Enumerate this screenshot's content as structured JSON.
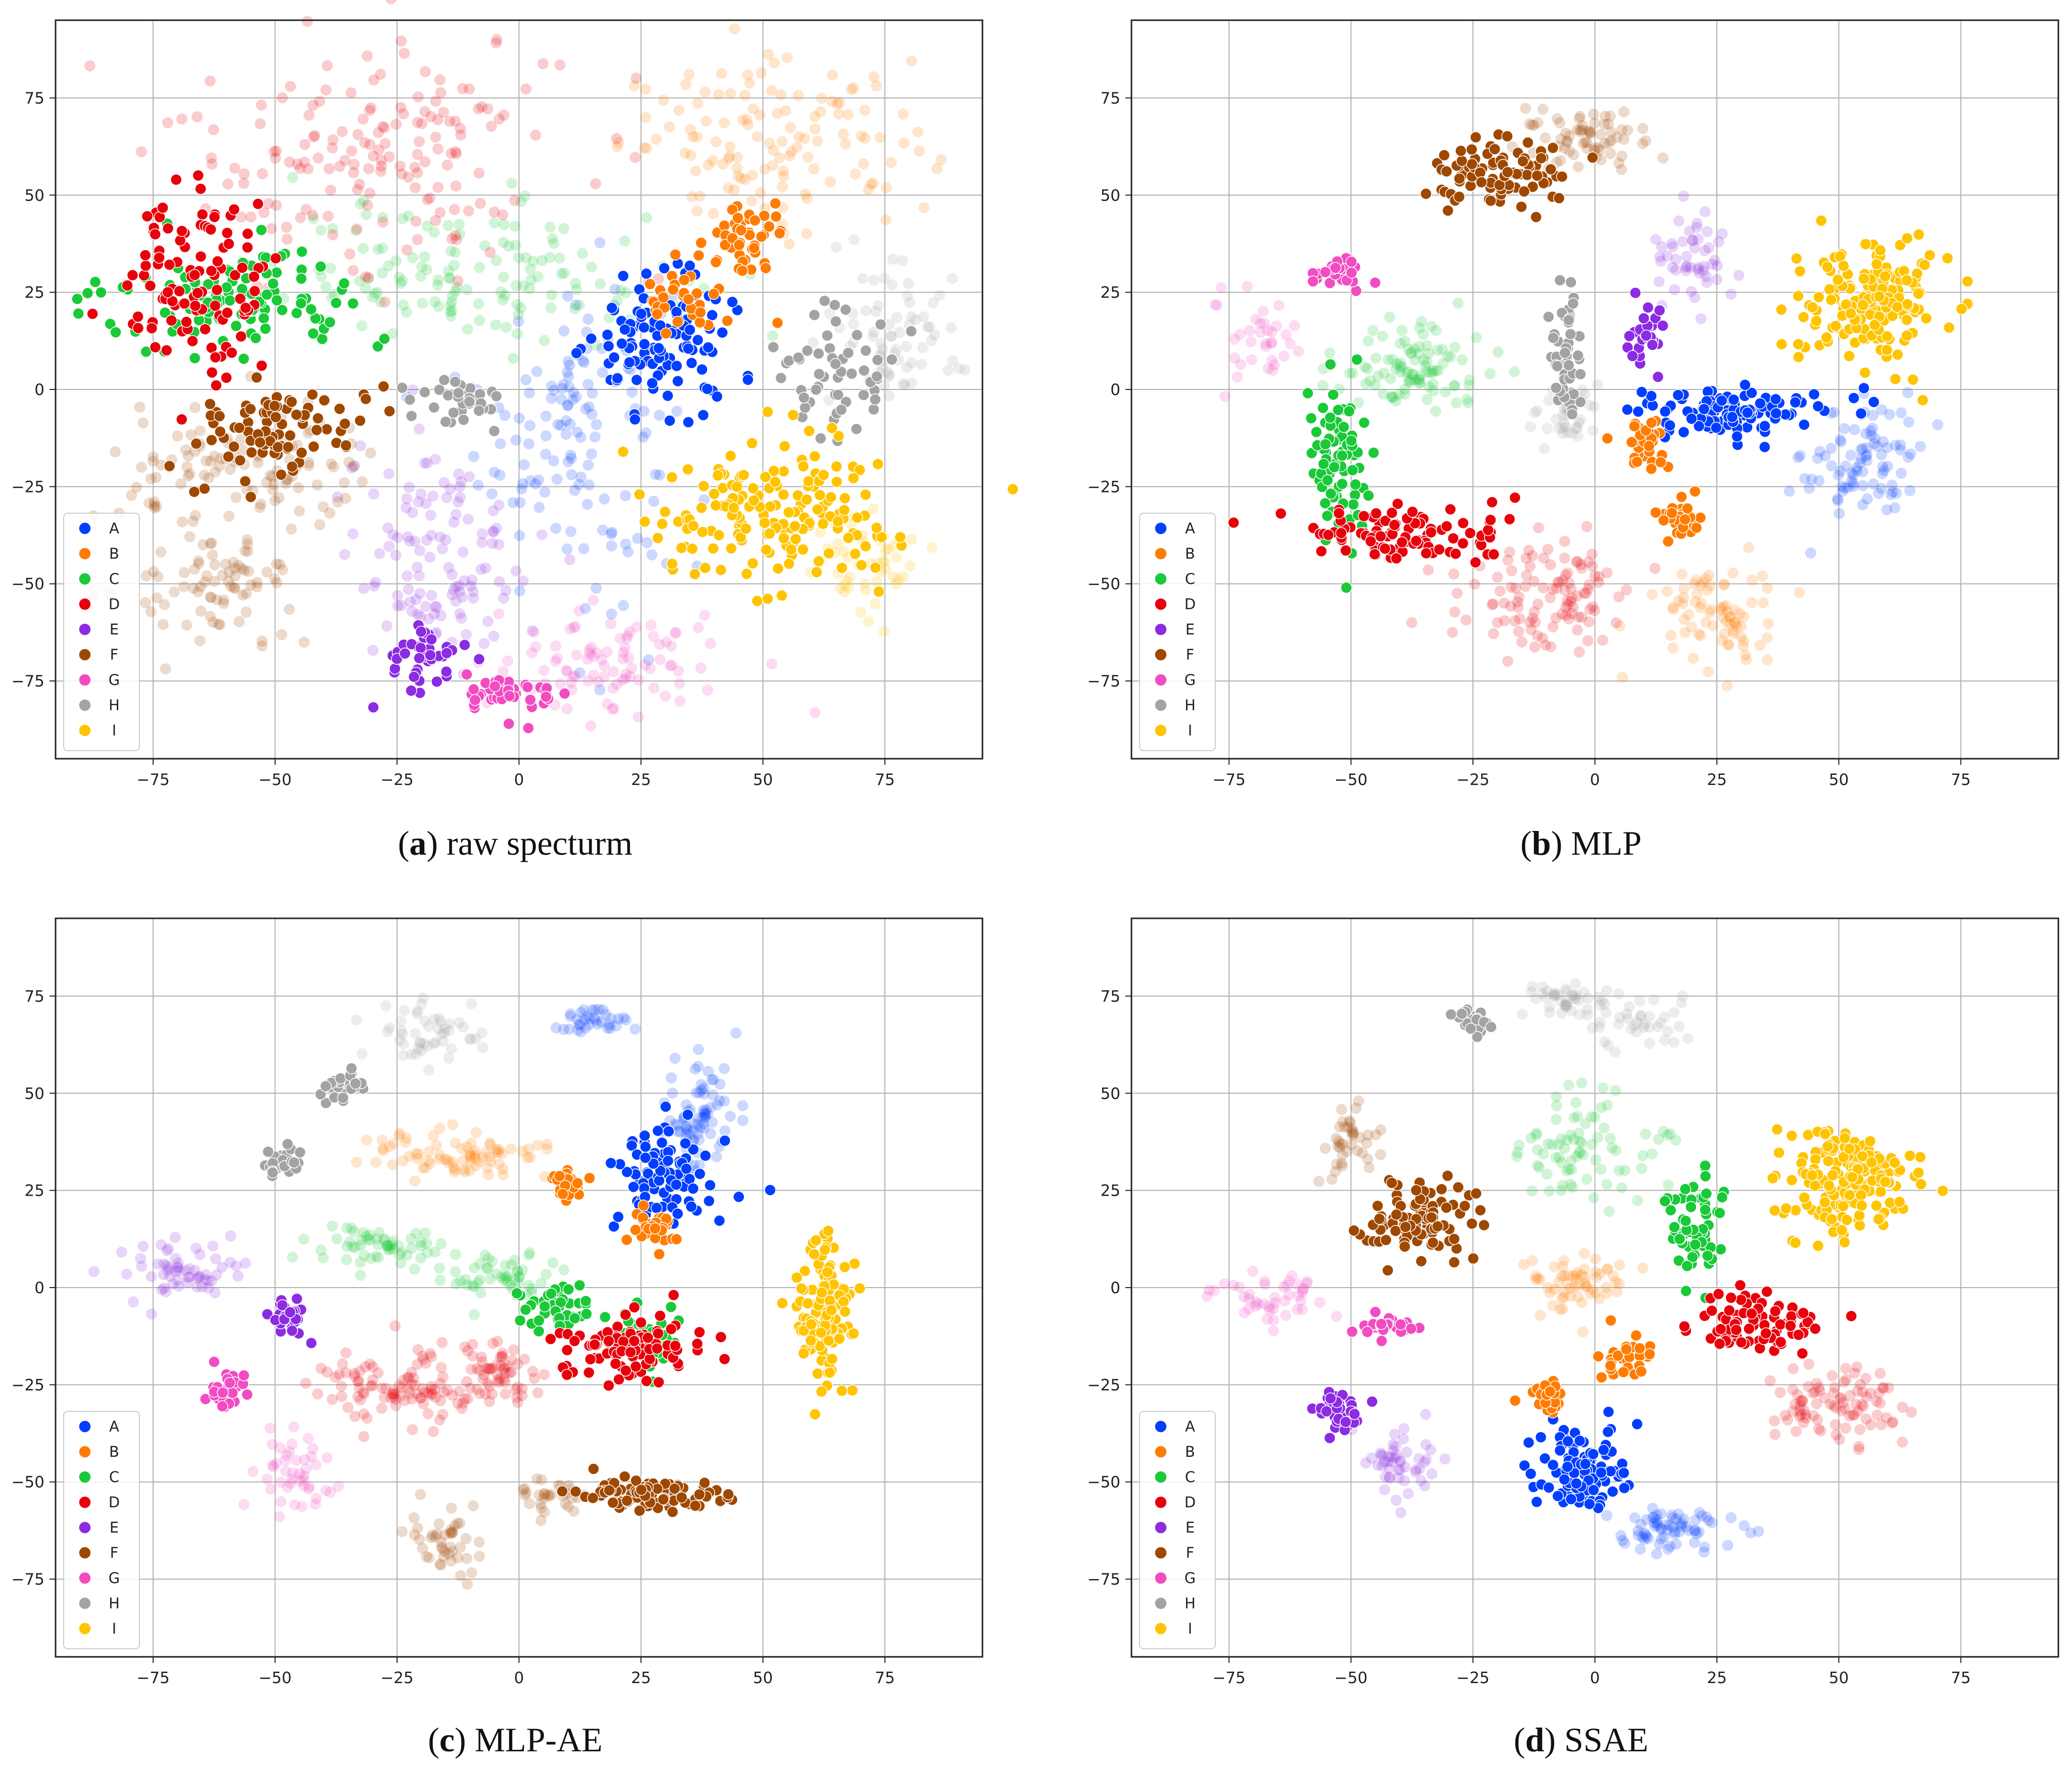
{
  "figure": {
    "captions": [
      {
        "letter": "a",
        "text": "raw specturm"
      },
      {
        "letter": "b",
        "text": "MLP"
      },
      {
        "letter": "c",
        "text": "MLP-AE"
      },
      {
        "letter": "d",
        "text": "SSAE"
      }
    ]
  },
  "chart_data": [
    {
      "type": "scatter",
      "title": "(a) raw specturm",
      "xlim": [
        -95,
        95
      ],
      "ylim": [
        -95,
        95
      ],
      "xticks": [
        -75,
        -50,
        -25,
        0,
        25,
        50,
        75
      ],
      "yticks": [
        -75,
        -50,
        -25,
        0,
        25,
        50,
        75
      ],
      "grid": true,
      "legend": "lower-left",
      "classes": [
        "A",
        "B",
        "C",
        "D",
        "E",
        "F",
        "G",
        "H",
        "I"
      ],
      "clusters": [
        {
          "class": "A",
          "cx": 30,
          "cy": 12,
          "sx": 8,
          "sy": 9,
          "n": 110,
          "alpha": 1
        },
        {
          "class": "A",
          "cx": 12,
          "cy": -10,
          "sx": 10,
          "sy": 22,
          "n": 140,
          "alpha": 0.2
        },
        {
          "class": "B",
          "cx": 47,
          "cy": 40,
          "sx": 4,
          "sy": 5,
          "n": 40,
          "alpha": 1
        },
        {
          "class": "B",
          "cx": 35,
          "cy": 24,
          "sx": 5,
          "sy": 5,
          "n": 35,
          "alpha": 1
        },
        {
          "class": "B",
          "cx": 53,
          "cy": 63,
          "sx": 16,
          "sy": 10,
          "n": 130,
          "alpha": 0.2
        },
        {
          "class": "C",
          "cx": -58,
          "cy": 23,
          "sx": 13,
          "sy": 6,
          "n": 110,
          "alpha": 1
        },
        {
          "class": "C",
          "cx": -8,
          "cy": 30,
          "sx": 20,
          "sy": 9,
          "n": 140,
          "alpha": 0.2
        },
        {
          "class": "D",
          "cx": -66,
          "cy": 28,
          "sx": 8,
          "sy": 11,
          "n": 110,
          "alpha": 1
        },
        {
          "class": "D",
          "cx": -30,
          "cy": 62,
          "sx": 20,
          "sy": 16,
          "n": 170,
          "alpha": 0.2
        },
        {
          "class": "E",
          "cx": -18,
          "cy": -70,
          "sx": 4,
          "sy": 5,
          "n": 40,
          "alpha": 1
        },
        {
          "class": "E",
          "cx": -16,
          "cy": -42,
          "sx": 10,
          "sy": 15,
          "n": 120,
          "alpha": 0.2
        },
        {
          "class": "F",
          "cx": -50,
          "cy": -11,
          "sx": 9,
          "sy": 6,
          "n": 90,
          "alpha": 1
        },
        {
          "class": "F",
          "cx": -55,
          "cy": -22,
          "sx": 13,
          "sy": 8,
          "n": 110,
          "alpha": 0.2
        },
        {
          "class": "F",
          "cx": -62,
          "cy": -51,
          "sx": 8,
          "sy": 7,
          "n": 80,
          "alpha": 0.2
        },
        {
          "class": "G",
          "cx": -1,
          "cy": -78,
          "sx": 5,
          "sy": 3,
          "n": 45,
          "alpha": 1
        },
        {
          "class": "G",
          "cx": 20,
          "cy": -71,
          "sx": 12,
          "sy": 7,
          "n": 90,
          "alpha": 0.2
        },
        {
          "class": "H",
          "cx": -12,
          "cy": -2,
          "sx": 5,
          "sy": 3,
          "n": 35,
          "alpha": 1
        },
        {
          "class": "H",
          "cx": 65,
          "cy": 5,
          "sx": 6,
          "sy": 10,
          "n": 55,
          "alpha": 1
        },
        {
          "class": "H",
          "cx": 77,
          "cy": 15,
          "sx": 7,
          "sy": 9,
          "n": 70,
          "alpha": 0.2
        },
        {
          "class": "I",
          "cx": 52,
          "cy": -32,
          "sx": 13,
          "sy": 9,
          "n": 170,
          "alpha": 1
        },
        {
          "class": "I",
          "cx": 70,
          "cy": -43,
          "sx": 6,
          "sy": 7,
          "n": 50,
          "alpha": 0.2
        }
      ]
    },
    {
      "type": "scatter",
      "title": "(b) MLP",
      "xlim": [
        -95,
        95
      ],
      "ylim": [
        -95,
        95
      ],
      "xticks": [
        -75,
        -50,
        -25,
        0,
        25,
        50,
        75
      ],
      "yticks": [
        -75,
        -50,
        -25,
        0,
        25,
        50,
        75
      ],
      "grid": true,
      "legend": "lower-left",
      "classes": [
        "A",
        "B",
        "C",
        "D",
        "E",
        "F",
        "G",
        "H",
        "I"
      ],
      "clusters": [
        {
          "class": "A",
          "cx": 28,
          "cy": -6,
          "sx": 10,
          "sy": 3,
          "n": 110,
          "alpha": 1
        },
        {
          "class": "A",
          "cx": 55,
          "cy": -18,
          "sx": 6,
          "sy": 8,
          "n": 90,
          "alpha": 0.2
        },
        {
          "class": "B",
          "cx": 10,
          "cy": -14,
          "sx": 3,
          "sy": 3,
          "n": 30,
          "alpha": 1
        },
        {
          "class": "B",
          "cx": 17,
          "cy": -33,
          "sx": 2,
          "sy": 3,
          "n": 30,
          "alpha": 1
        },
        {
          "class": "B",
          "cx": 25,
          "cy": -58,
          "sx": 6,
          "sy": 7,
          "n": 80,
          "alpha": 0.2
        },
        {
          "class": "C",
          "cx": -53,
          "cy": -18,
          "sx": 3,
          "sy": 9,
          "n": 80,
          "alpha": 1
        },
        {
          "class": "C",
          "cx": -38,
          "cy": 6,
          "sx": 8,
          "sy": 6,
          "n": 100,
          "alpha": 0.2
        },
        {
          "class": "D",
          "cx": -38,
          "cy": -38,
          "sx": 11,
          "sy": 4,
          "n": 100,
          "alpha": 1
        },
        {
          "class": "D",
          "cx": -10,
          "cy": -53,
          "sx": 9,
          "sy": 7,
          "n": 110,
          "alpha": 0.2
        },
        {
          "class": "E",
          "cx": 11,
          "cy": 14,
          "sx": 2,
          "sy": 4,
          "n": 30,
          "alpha": 1
        },
        {
          "class": "E",
          "cx": 20,
          "cy": 34,
          "sx": 4,
          "sy": 5,
          "n": 50,
          "alpha": 0.2
        },
        {
          "class": "F",
          "cx": -19,
          "cy": 55,
          "sx": 8,
          "sy": 5,
          "n": 90,
          "alpha": 1
        },
        {
          "class": "F",
          "cx": -4,
          "cy": 65,
          "sx": 7,
          "sy": 4,
          "n": 70,
          "alpha": 0.2
        },
        {
          "class": "G",
          "cx": -52,
          "cy": 30,
          "sx": 3,
          "sy": 2,
          "n": 25,
          "alpha": 1
        },
        {
          "class": "G",
          "cx": -70,
          "cy": 14,
          "sx": 5,
          "sy": 5,
          "n": 35,
          "alpha": 0.2
        },
        {
          "class": "H",
          "cx": -6,
          "cy": 10,
          "sx": 2,
          "sy": 9,
          "n": 50,
          "alpha": 1
        },
        {
          "class": "H",
          "cx": -6,
          "cy": -8,
          "sx": 3,
          "sy": 5,
          "n": 40,
          "alpha": 0.2
        },
        {
          "class": "I",
          "cx": 57,
          "cy": 22,
          "sx": 7,
          "sy": 8,
          "n": 170,
          "alpha": 1
        }
      ]
    },
    {
      "type": "scatter",
      "title": "(c) MLP-AE",
      "xlim": [
        -95,
        95
      ],
      "ylim": [
        -95,
        95
      ],
      "xticks": [
        -75,
        -50,
        -25,
        0,
        25,
        50,
        75
      ],
      "yticks": [
        -75,
        -50,
        -25,
        0,
        25,
        50,
        75
      ],
      "grid": true,
      "legend": "lower-left",
      "classes": [
        "A",
        "B",
        "C",
        "D",
        "E",
        "F",
        "G",
        "H",
        "I"
      ],
      "clusters": [
        {
          "class": "A",
          "cx": 31,
          "cy": 28,
          "sx": 5,
          "sy": 7,
          "n": 90,
          "alpha": 1
        },
        {
          "class": "A",
          "cx": 37,
          "cy": 45,
          "sx": 4,
          "sy": 8,
          "n": 80,
          "alpha": 0.2
        },
        {
          "class": "A",
          "cx": 15,
          "cy": 68,
          "sx": 4,
          "sy": 2,
          "n": 35,
          "alpha": 0.2
        },
        {
          "class": "B",
          "cx": 10,
          "cy": 27,
          "sx": 2,
          "sy": 3,
          "n": 30,
          "alpha": 1
        },
        {
          "class": "B",
          "cx": 28,
          "cy": 15,
          "sx": 3,
          "sy": 3,
          "n": 30,
          "alpha": 1
        },
        {
          "class": "B",
          "cx": -12,
          "cy": 34,
          "sx": 9,
          "sy": 3,
          "n": 80,
          "alpha": 0.2
        },
        {
          "class": "C",
          "cx": 8,
          "cy": -5,
          "sx": 4,
          "sy": 3,
          "n": 40,
          "alpha": 1
        },
        {
          "class": "C",
          "cx": 27,
          "cy": -12,
          "sx": 3,
          "sy": 5,
          "n": 30,
          "alpha": 1
        },
        {
          "class": "C",
          "cx": -28,
          "cy": 10,
          "sx": 7,
          "sy": 3,
          "n": 60,
          "alpha": 0.2
        },
        {
          "class": "C",
          "cx": -3,
          "cy": 3,
          "sx": 6,
          "sy": 3,
          "n": 50,
          "alpha": 0.2
        },
        {
          "class": "D",
          "cx": 22,
          "cy": -15,
          "sx": 7,
          "sy": 4,
          "n": 100,
          "alpha": 1
        },
        {
          "class": "D",
          "cx": -25,
          "cy": -26,
          "sx": 8,
          "sy": 5,
          "n": 100,
          "alpha": 0.2
        },
        {
          "class": "D",
          "cx": -5,
          "cy": -22,
          "sx": 5,
          "sy": 4,
          "n": 60,
          "alpha": 0.2
        },
        {
          "class": "E",
          "cx": -47,
          "cy": -8,
          "sx": 2,
          "sy": 2,
          "n": 25,
          "alpha": 1
        },
        {
          "class": "E",
          "cx": -70,
          "cy": 4,
          "sx": 6,
          "sy": 4,
          "n": 60,
          "alpha": 0.2
        },
        {
          "class": "F",
          "cx": 26,
          "cy": -53,
          "sx": 8,
          "sy": 2,
          "n": 90,
          "alpha": 1
        },
        {
          "class": "F",
          "cx": -15,
          "cy": -66,
          "sx": 4,
          "sy": 5,
          "n": 45,
          "alpha": 0.2
        },
        {
          "class": "F",
          "cx": 5,
          "cy": -53,
          "sx": 4,
          "sy": 2,
          "n": 30,
          "alpha": 0.2
        },
        {
          "class": "G",
          "cx": -60,
          "cy": -26,
          "sx": 2,
          "sy": 3,
          "n": 30,
          "alpha": 1
        },
        {
          "class": "G",
          "cx": -47,
          "cy": -47,
          "sx": 4,
          "sy": 5,
          "n": 45,
          "alpha": 0.2
        },
        {
          "class": "H",
          "cx": -49,
          "cy": 32,
          "sx": 2,
          "sy": 2,
          "n": 25,
          "alpha": 1
        },
        {
          "class": "H",
          "cx": -36,
          "cy": 52,
          "sx": 2,
          "sy": 3,
          "n": 25,
          "alpha": 1
        },
        {
          "class": "H",
          "cx": -20,
          "cy": 65,
          "sx": 6,
          "sy": 4,
          "n": 50,
          "alpha": 0.2
        },
        {
          "class": "I",
          "cx": 63,
          "cy": -6,
          "sx": 3,
          "sy": 10,
          "n": 120,
          "alpha": 1
        }
      ]
    },
    {
      "type": "scatter",
      "title": "(d) SSAE",
      "xlim": [
        -95,
        95
      ],
      "ylim": [
        -95,
        95
      ],
      "xticks": [
        -75,
        -50,
        -25,
        0,
        25,
        50,
        75
      ],
      "yticks": [
        -75,
        -50,
        -25,
        0,
        25,
        50,
        75
      ],
      "grid": true,
      "legend": "lower-left",
      "classes": [
        "A",
        "B",
        "C",
        "D",
        "E",
        "F",
        "G",
        "H",
        "I"
      ],
      "clusters": [
        {
          "class": "A",
          "cx": -3,
          "cy": -48,
          "sx": 5,
          "sy": 6,
          "n": 100,
          "alpha": 1
        },
        {
          "class": "A",
          "cx": 14,
          "cy": -63,
          "sx": 7,
          "sy": 3,
          "n": 70,
          "alpha": 0.2
        },
        {
          "class": "B",
          "cx": 6,
          "cy": -18,
          "sx": 3,
          "sy": 3,
          "n": 30,
          "alpha": 1
        },
        {
          "class": "B",
          "cx": -10,
          "cy": -28,
          "sx": 2,
          "sy": 3,
          "n": 25,
          "alpha": 1
        },
        {
          "class": "B",
          "cx": -3,
          "cy": 2,
          "sx": 5,
          "sy": 4,
          "n": 60,
          "alpha": 0.2
        },
        {
          "class": "C",
          "cx": 20,
          "cy": 16,
          "sx": 3,
          "sy": 7,
          "n": 60,
          "alpha": 1
        },
        {
          "class": "C",
          "cx": -2,
          "cy": 35,
          "sx": 7,
          "sy": 7,
          "n": 80,
          "alpha": 0.2
        },
        {
          "class": "D",
          "cx": 33,
          "cy": -10,
          "sx": 7,
          "sy": 4,
          "n": 80,
          "alpha": 1
        },
        {
          "class": "D",
          "cx": 50,
          "cy": -30,
          "sx": 7,
          "sy": 5,
          "n": 90,
          "alpha": 0.2
        },
        {
          "class": "E",
          "cx": -52,
          "cy": -33,
          "sx": 3,
          "sy": 3,
          "n": 35,
          "alpha": 1
        },
        {
          "class": "E",
          "cx": -40,
          "cy": -46,
          "sx": 4,
          "sy": 6,
          "n": 50,
          "alpha": 0.2
        },
        {
          "class": "F",
          "cx": -38,
          "cy": 18,
          "sx": 6,
          "sy": 5,
          "n": 100,
          "alpha": 1
        },
        {
          "class": "F",
          "cx": -50,
          "cy": 37,
          "sx": 3,
          "sy": 5,
          "n": 40,
          "alpha": 0.2
        },
        {
          "class": "G",
          "cx": -43,
          "cy": -10,
          "sx": 3,
          "sy": 1,
          "n": 30,
          "alpha": 1
        },
        {
          "class": "G",
          "cx": -65,
          "cy": -3,
          "sx": 6,
          "sy": 3,
          "n": 45,
          "alpha": 0.2
        },
        {
          "class": "H",
          "cx": -25,
          "cy": 69,
          "sx": 2,
          "sy": 2,
          "n": 25,
          "alpha": 1
        },
        {
          "class": "H",
          "cx": -7,
          "cy": 74,
          "sx": 4,
          "sy": 2,
          "n": 40,
          "alpha": 0.2
        },
        {
          "class": "H",
          "cx": 8,
          "cy": 69,
          "sx": 5,
          "sy": 4,
          "n": 40,
          "alpha": 0.2
        },
        {
          "class": "I",
          "cx": 52,
          "cy": 27,
          "sx": 7,
          "sy": 7,
          "n": 170,
          "alpha": 1
        }
      ]
    }
  ],
  "legend": {
    "labels": [
      "A",
      "B",
      "C",
      "D",
      "E",
      "F",
      "G",
      "H",
      "I"
    ],
    "colors": [
      "#023eff",
      "#ff7c00",
      "#1ac938",
      "#e8000b",
      "#8b2be2",
      "#9f4800",
      "#f14cc1",
      "#a3a3a3",
      "#ffc400"
    ]
  }
}
